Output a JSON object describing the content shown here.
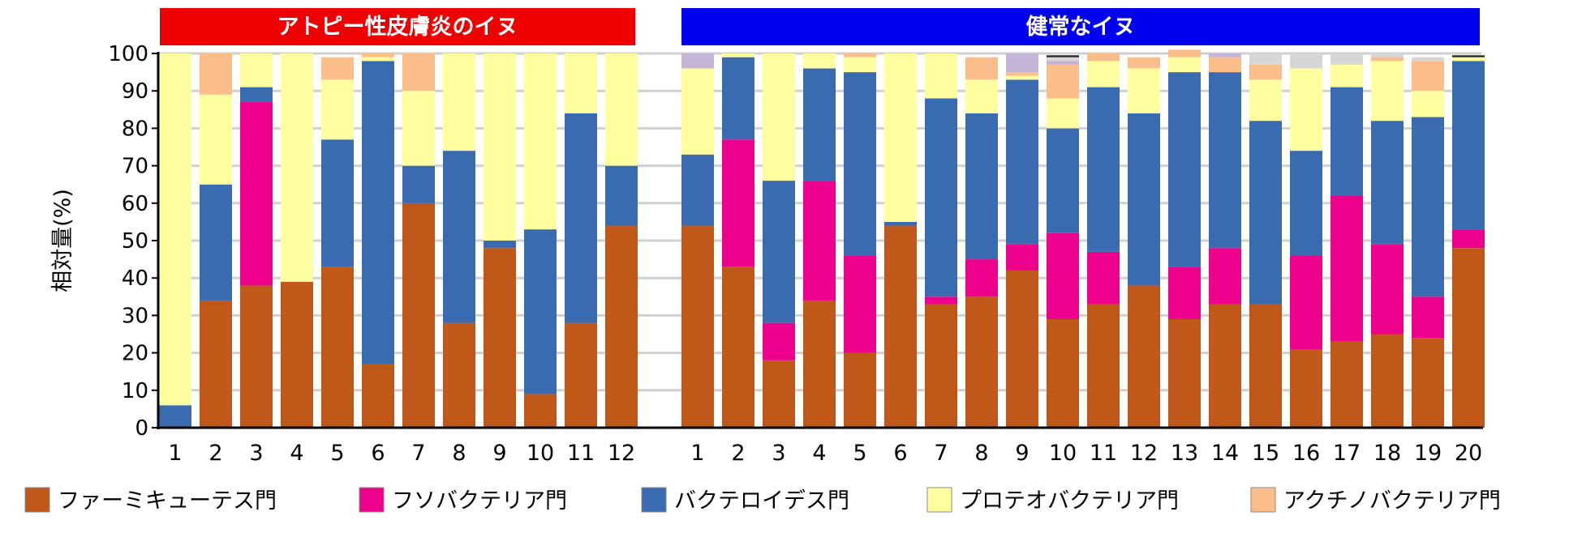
{
  "chart_data": {
    "type": "bar",
    "stacked": true,
    "ylabel": "相対量(%)",
    "ylim": [
      0,
      100
    ],
    "yticks": [
      0,
      10,
      20,
      30,
      40,
      50,
      60,
      70,
      80,
      90,
      100
    ],
    "grid": true,
    "legend_position": "bottom",
    "panels": [
      {
        "title": "アトピー性皮膚炎のイヌ",
        "title_color": "#ee0000",
        "categories": [
          "1",
          "2",
          "3",
          "4",
          "5",
          "6",
          "7",
          "8",
          "9",
          "10",
          "11",
          "12"
        ]
      },
      {
        "title": "健常なイヌ",
        "title_color": "#0000ee",
        "categories": [
          "1",
          "2",
          "3",
          "4",
          "5",
          "6",
          "7",
          "8",
          "9",
          "10",
          "11",
          "12",
          "13",
          "14",
          "15",
          "16",
          "17",
          "18",
          "19",
          "20"
        ]
      }
    ],
    "series": [
      {
        "name": "ファーミキューテス門",
        "color": "#c0581a",
        "values": [
          [
            0,
            34,
            38,
            39,
            43,
            17,
            60,
            28,
            48,
            9,
            28,
            54
          ],
          [
            54,
            43,
            18,
            34,
            20,
            54,
            33,
            35,
            42,
            29,
            33,
            38,
            29,
            33,
            33,
            21,
            23,
            25,
            24,
            48
          ]
        ]
      },
      {
        "name": "フソバクテリア門",
        "color": "#ec008c",
        "values": [
          [
            0,
            0,
            49,
            0,
            0,
            0,
            0,
            0,
            0,
            0,
            0,
            0
          ],
          [
            0,
            34,
            10,
            32,
            26,
            0,
            2,
            10,
            7,
            23,
            14,
            0,
            14,
            15,
            0,
            25,
            39,
            24,
            11,
            5
          ]
        ]
      },
      {
        "name": "バクテロイデス門",
        "color": "#3a6ab0",
        "values": [
          [
            6,
            31,
            4,
            0,
            34,
            81,
            10,
            46,
            2,
            44,
            56,
            16
          ],
          [
            19,
            22,
            38,
            30,
            49,
            1,
            53,
            39,
            44,
            28,
            44,
            46,
            52,
            47,
            49,
            28,
            29,
            33,
            48,
            45
          ]
        ]
      },
      {
        "name": "プロテオバクテリア門",
        "color": "#ffffa0",
        "values": [
          [
            94,
            24,
            9,
            61,
            16,
            1,
            20,
            26,
            50,
            47,
            16,
            30
          ],
          [
            23,
            1,
            34,
            4,
            4,
            45,
            12,
            9,
            1,
            8,
            7,
            12,
            4,
            0,
            11,
            22,
            6,
            16,
            7,
            1
          ]
        ]
      },
      {
        "name": "アクチノバクテリア門",
        "color": "#fbbe8a",
        "values": [
          [
            0,
            11,
            0,
            0,
            6,
            1,
            10,
            0,
            0,
            0,
            0,
            0
          ],
          [
            0,
            0,
            0,
            0,
            1,
            0,
            0,
            6,
            1,
            9,
            2,
            3,
            2,
            4,
            4,
            0,
            0,
            1,
            8,
            0
          ]
        ]
      }
    ],
    "unlisted_segments": {
      "colors": [
        "#c3b4d8",
        "#d6d6d6",
        "#222222"
      ],
      "values": [
        [
          0,
          0,
          0,
          0,
          0,
          0,
          0,
          0,
          0,
          0,
          0,
          0
        ],
        [
          [
            4,
            0,
            0
          ],
          [
            0,
            0,
            0
          ],
          [
            0,
            0,
            0
          ],
          [
            0,
            0,
            0
          ],
          [
            0,
            0,
            0
          ],
          [
            0,
            0,
            0
          ],
          [
            0,
            0,
            0
          ],
          [
            0,
            0,
            0
          ],
          [
            5,
            0,
            0
          ],
          [
            1,
            1,
            0.5
          ],
          [
            0,
            0,
            0
          ],
          [
            0,
            0,
            0
          ],
          [
            0,
            0,
            0
          ],
          [
            1,
            0,
            0
          ],
          [
            0,
            3,
            0
          ],
          [
            0,
            4,
            0
          ],
          [
            0,
            3,
            0
          ],
          [
            0,
            1,
            0
          ],
          [
            0,
            1,
            0
          ],
          [
            0,
            0,
            0.5
          ]
        ]
      ]
    }
  }
}
